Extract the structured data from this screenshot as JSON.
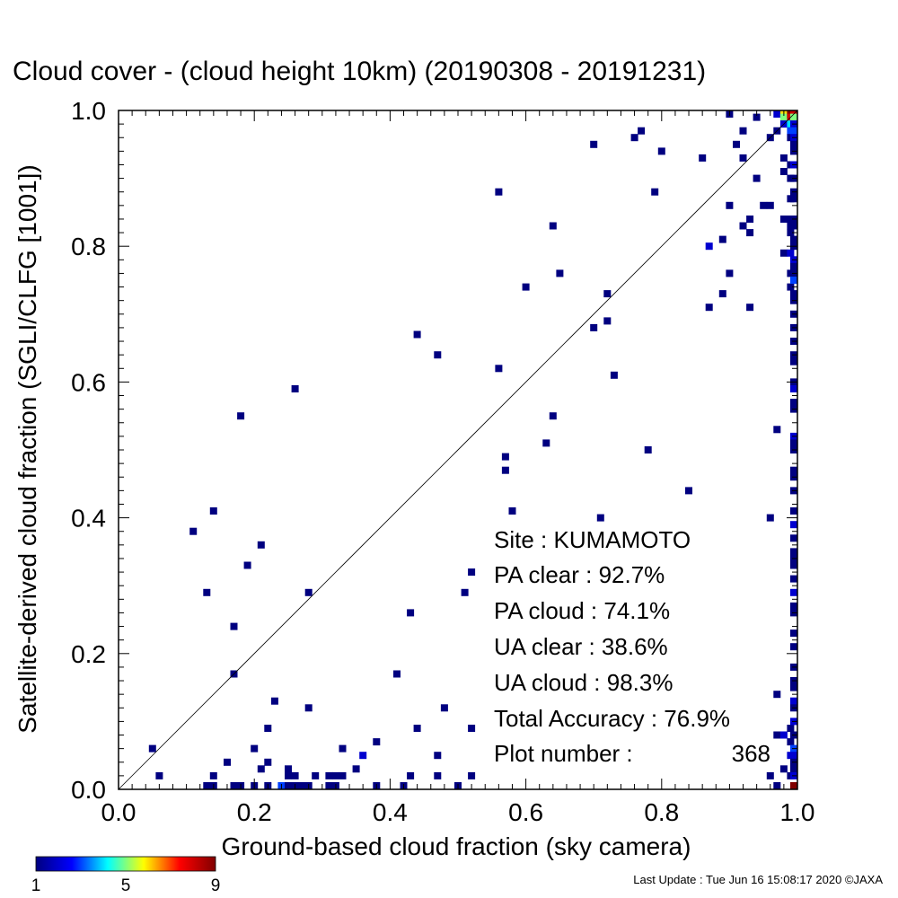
{
  "chart_data": {
    "type": "heatmap",
    "title": "Cloud cover - (cloud height 10km)  (20190308 - 20191231)",
    "xlabel": "Ground-based cloud fraction (sky camera)",
    "ylabel": "Satellite-derived cloud fraction (SGLI/CLFG [1001])",
    "xlim": [
      0.0,
      1.0
    ],
    "ylim": [
      0.0,
      1.0
    ],
    "xticks": [
      "0.0",
      "0.2",
      "0.4",
      "0.6",
      "0.8",
      "1.0"
    ],
    "yticks": [
      "0.0",
      "0.2",
      "0.4",
      "0.6",
      "0.8",
      "1.0"
    ],
    "diagonal_line": true,
    "grid": false,
    "colorbar": {
      "min": 1,
      "max": 9,
      "ticks": [
        "1",
        "5",
        "9"
      ],
      "colors": [
        "#000080",
        "#0000ff",
        "#00ffff",
        "#ffff00",
        "#ff0000",
        "#800000"
      ]
    },
    "points": [
      {
        "x": 0.05,
        "y": 0.06,
        "count": 1
      },
      {
        "x": 0.06,
        "y": 0.02,
        "count": 1
      },
      {
        "x": 0.11,
        "y": 0.38,
        "count": 1
      },
      {
        "x": 0.13,
        "y": 0.29,
        "count": 1
      },
      {
        "x": 0.13,
        "y": 0.0,
        "count": 1
      },
      {
        "x": 0.14,
        "y": 0.41,
        "count": 1
      },
      {
        "x": 0.14,
        "y": 0.02,
        "count": 1
      },
      {
        "x": 0.14,
        "y": 0.0,
        "count": 1
      },
      {
        "x": 0.16,
        "y": 0.04,
        "count": 1
      },
      {
        "x": 0.17,
        "y": 0.24,
        "count": 1
      },
      {
        "x": 0.17,
        "y": 0.17,
        "count": 1
      },
      {
        "x": 0.17,
        "y": 0.0,
        "count": 1
      },
      {
        "x": 0.18,
        "y": 0.55,
        "count": 1
      },
      {
        "x": 0.18,
        "y": 0.0,
        "count": 1
      },
      {
        "x": 0.19,
        "y": 0.33,
        "count": 1
      },
      {
        "x": 0.2,
        "y": 0.06,
        "count": 1
      },
      {
        "x": 0.2,
        "y": 0.0,
        "count": 1
      },
      {
        "x": 0.21,
        "y": 0.36,
        "count": 1
      },
      {
        "x": 0.21,
        "y": 0.03,
        "count": 1
      },
      {
        "x": 0.22,
        "y": 0.09,
        "count": 1
      },
      {
        "x": 0.22,
        "y": 0.04,
        "count": 1
      },
      {
        "x": 0.22,
        "y": 0.0,
        "count": 1
      },
      {
        "x": 0.23,
        "y": 0.13,
        "count": 1
      },
      {
        "x": 0.24,
        "y": 0.0,
        "count": 3
      },
      {
        "x": 0.25,
        "y": 0.03,
        "count": 1
      },
      {
        "x": 0.25,
        "y": 0.02,
        "count": 1
      },
      {
        "x": 0.25,
        "y": 0.0,
        "count": 1
      },
      {
        "x": 0.26,
        "y": 0.59,
        "count": 1
      },
      {
        "x": 0.26,
        "y": 0.02,
        "count": 1
      },
      {
        "x": 0.26,
        "y": 0.0,
        "count": 1
      },
      {
        "x": 0.27,
        "y": 0.0,
        "count": 1
      },
      {
        "x": 0.28,
        "y": 0.29,
        "count": 1
      },
      {
        "x": 0.28,
        "y": 0.12,
        "count": 1
      },
      {
        "x": 0.28,
        "y": 0.0,
        "count": 1
      },
      {
        "x": 0.29,
        "y": 0.02,
        "count": 1
      },
      {
        "x": 0.31,
        "y": 0.02,
        "count": 1
      },
      {
        "x": 0.31,
        "y": 0.0,
        "count": 1
      },
      {
        "x": 0.32,
        "y": 0.02,
        "count": 1
      },
      {
        "x": 0.32,
        "y": 0.0,
        "count": 1
      },
      {
        "x": 0.33,
        "y": 0.06,
        "count": 1
      },
      {
        "x": 0.33,
        "y": 0.02,
        "count": 1
      },
      {
        "x": 0.35,
        "y": 0.03,
        "count": 1
      },
      {
        "x": 0.36,
        "y": 0.05,
        "count": 2
      },
      {
        "x": 0.38,
        "y": 0.07,
        "count": 1
      },
      {
        "x": 0.38,
        "y": 0.0,
        "count": 1
      },
      {
        "x": 0.41,
        "y": 0.17,
        "count": 1
      },
      {
        "x": 0.42,
        "y": 0.0,
        "count": 1
      },
      {
        "x": 0.43,
        "y": 0.26,
        "count": 1
      },
      {
        "x": 0.43,
        "y": 0.02,
        "count": 1
      },
      {
        "x": 0.44,
        "y": 0.67,
        "count": 1
      },
      {
        "x": 0.44,
        "y": 0.09,
        "count": 1
      },
      {
        "x": 0.47,
        "y": 0.64,
        "count": 1
      },
      {
        "x": 0.47,
        "y": 0.05,
        "count": 1
      },
      {
        "x": 0.47,
        "y": 0.02,
        "count": 1
      },
      {
        "x": 0.48,
        "y": 0.12,
        "count": 1
      },
      {
        "x": 0.5,
        "y": 0.0,
        "count": 1
      },
      {
        "x": 0.51,
        "y": 0.29,
        "count": 1
      },
      {
        "x": 0.52,
        "y": 0.32,
        "count": 1
      },
      {
        "x": 0.52,
        "y": 0.09,
        "count": 1
      },
      {
        "x": 0.52,
        "y": 0.02,
        "count": 1
      },
      {
        "x": 0.56,
        "y": 0.88,
        "count": 1
      },
      {
        "x": 0.56,
        "y": 0.62,
        "count": 1
      },
      {
        "x": 0.57,
        "y": 0.49,
        "count": 1
      },
      {
        "x": 0.57,
        "y": 0.47,
        "count": 1
      },
      {
        "x": 0.58,
        "y": 0.41,
        "count": 1
      },
      {
        "x": 0.6,
        "y": 0.74,
        "count": 1
      },
      {
        "x": 0.63,
        "y": 0.51,
        "count": 1
      },
      {
        "x": 0.64,
        "y": 0.83,
        "count": 1
      },
      {
        "x": 0.64,
        "y": 0.55,
        "count": 1
      },
      {
        "x": 0.65,
        "y": 0.76,
        "count": 1
      },
      {
        "x": 0.7,
        "y": 0.95,
        "count": 1
      },
      {
        "x": 0.7,
        "y": 0.68,
        "count": 1
      },
      {
        "x": 0.71,
        "y": 0.4,
        "count": 1
      },
      {
        "x": 0.72,
        "y": 0.73,
        "count": 1
      },
      {
        "x": 0.72,
        "y": 0.69,
        "count": 1
      },
      {
        "x": 0.73,
        "y": 0.61,
        "count": 1
      },
      {
        "x": 0.76,
        "y": 0.96,
        "count": 1
      },
      {
        "x": 0.77,
        "y": 0.97,
        "count": 1
      },
      {
        "x": 0.78,
        "y": 0.5,
        "count": 1
      },
      {
        "x": 0.79,
        "y": 0.88,
        "count": 1
      },
      {
        "x": 0.8,
        "y": 0.94,
        "count": 1
      },
      {
        "x": 0.84,
        "y": 0.44,
        "count": 1
      },
      {
        "x": 0.86,
        "y": 0.93,
        "count": 1
      },
      {
        "x": 0.87,
        "y": 0.8,
        "count": 2
      },
      {
        "x": 0.87,
        "y": 0.71,
        "count": 1
      },
      {
        "x": 0.89,
        "y": 0.81,
        "count": 1
      },
      {
        "x": 0.89,
        "y": 0.73,
        "count": 1
      },
      {
        "x": 0.9,
        "y": 1.0,
        "count": 1
      },
      {
        "x": 0.9,
        "y": 0.86,
        "count": 1
      },
      {
        "x": 0.9,
        "y": 0.76,
        "count": 1
      },
      {
        "x": 0.91,
        "y": 0.95,
        "count": 1
      },
      {
        "x": 0.92,
        "y": 0.97,
        "count": 1
      },
      {
        "x": 0.92,
        "y": 0.93,
        "count": 1
      },
      {
        "x": 0.92,
        "y": 0.83,
        "count": 1
      },
      {
        "x": 0.93,
        "y": 0.84,
        "count": 1
      },
      {
        "x": 0.93,
        "y": 0.82,
        "count": 1
      },
      {
        "x": 0.93,
        "y": 0.71,
        "count": 1
      },
      {
        "x": 0.94,
        "y": 0.99,
        "count": 1
      },
      {
        "x": 0.94,
        "y": 0.9,
        "count": 1
      },
      {
        "x": 0.95,
        "y": 0.86,
        "count": 1
      },
      {
        "x": 0.96,
        "y": 0.96,
        "count": 1
      },
      {
        "x": 0.96,
        "y": 0.86,
        "count": 1
      },
      {
        "x": 0.96,
        "y": 0.4,
        "count": 1
      },
      {
        "x": 0.96,
        "y": 0.02,
        "count": 1
      },
      {
        "x": 0.97,
        "y": 1.0,
        "count": 2
      },
      {
        "x": 0.97,
        "y": 0.97,
        "count": 1
      },
      {
        "x": 0.97,
        "y": 0.53,
        "count": 1
      },
      {
        "x": 0.97,
        "y": 0.14,
        "count": 1
      },
      {
        "x": 0.97,
        "y": 0.08,
        "count": 1
      },
      {
        "x": 0.97,
        "y": 0.0,
        "count": 1
      },
      {
        "x": 0.98,
        "y": 1.0,
        "count": 6
      },
      {
        "x": 0.98,
        "y": 0.99,
        "count": 5
      },
      {
        "x": 0.98,
        "y": 0.98,
        "count": 2
      },
      {
        "x": 0.98,
        "y": 0.93,
        "count": 1
      },
      {
        "x": 0.98,
        "y": 0.91,
        "count": 1
      },
      {
        "x": 0.98,
        "y": 0.84,
        "count": 1
      },
      {
        "x": 0.98,
        "y": 0.79,
        "count": 1
      },
      {
        "x": 0.98,
        "y": 0.08,
        "count": 2
      },
      {
        "x": 0.98,
        "y": 0.03,
        "count": 1
      },
      {
        "x": 0.99,
        "y": 1.0,
        "count": 9
      },
      {
        "x": 0.99,
        "y": 0.99,
        "count": 8
      },
      {
        "x": 0.99,
        "y": 0.98,
        "count": 4
      },
      {
        "x": 0.99,
        "y": 0.97,
        "count": 3
      },
      {
        "x": 0.99,
        "y": 0.96,
        "count": 1
      },
      {
        "x": 0.99,
        "y": 0.92,
        "count": 1
      },
      {
        "x": 0.99,
        "y": 0.9,
        "count": 1
      },
      {
        "x": 0.99,
        "y": 0.87,
        "count": 1
      },
      {
        "x": 0.99,
        "y": 0.84,
        "count": 1
      },
      {
        "x": 0.99,
        "y": 0.83,
        "count": 1
      },
      {
        "x": 0.99,
        "y": 0.82,
        "count": 1
      },
      {
        "x": 0.99,
        "y": 0.79,
        "count": 2
      },
      {
        "x": 0.99,
        "y": 0.76,
        "count": 1
      },
      {
        "x": 0.99,
        "y": 0.74,
        "count": 1
      },
      {
        "x": 0.99,
        "y": 0.09,
        "count": 1
      },
      {
        "x": 0.99,
        "y": 0.07,
        "count": 1
      },
      {
        "x": 0.99,
        "y": 0.05,
        "count": 2
      },
      {
        "x": 0.99,
        "y": 0.02,
        "count": 1
      },
      {
        "x": 1.0,
        "y": 1.0,
        "count": 8
      },
      {
        "x": 1.0,
        "y": 0.99,
        "count": 5
      },
      {
        "x": 1.0,
        "y": 0.98,
        "count": 2
      },
      {
        "x": 1.0,
        "y": 0.97,
        "count": 3
      },
      {
        "x": 1.0,
        "y": 0.96,
        "count": 2
      },
      {
        "x": 1.0,
        "y": 0.95,
        "count": 1
      },
      {
        "x": 1.0,
        "y": 0.94,
        "count": 1
      },
      {
        "x": 1.0,
        "y": 0.92,
        "count": 2
      },
      {
        "x": 1.0,
        "y": 0.9,
        "count": 1
      },
      {
        "x": 1.0,
        "y": 0.88,
        "count": 1
      },
      {
        "x": 1.0,
        "y": 0.87,
        "count": 1
      },
      {
        "x": 1.0,
        "y": 0.84,
        "count": 1
      },
      {
        "x": 1.0,
        "y": 0.83,
        "count": 1
      },
      {
        "x": 1.0,
        "y": 0.81,
        "count": 1
      },
      {
        "x": 1.0,
        "y": 0.8,
        "count": 1
      },
      {
        "x": 1.0,
        "y": 0.78,
        "count": 2
      },
      {
        "x": 1.0,
        "y": 0.77,
        "count": 1
      },
      {
        "x": 1.0,
        "y": 0.76,
        "count": 1
      },
      {
        "x": 1.0,
        "y": 0.75,
        "count": 3
      },
      {
        "x": 1.0,
        "y": 0.73,
        "count": 1
      },
      {
        "x": 1.0,
        "y": 0.72,
        "count": 1
      },
      {
        "x": 1.0,
        "y": 0.7,
        "count": 1
      },
      {
        "x": 1.0,
        "y": 0.68,
        "count": 1
      },
      {
        "x": 1.0,
        "y": 0.66,
        "count": 1
      },
      {
        "x": 1.0,
        "y": 0.64,
        "count": 1
      },
      {
        "x": 1.0,
        "y": 0.63,
        "count": 1
      },
      {
        "x": 1.0,
        "y": 0.6,
        "count": 1
      },
      {
        "x": 1.0,
        "y": 0.59,
        "count": 2
      },
      {
        "x": 1.0,
        "y": 0.57,
        "count": 1
      },
      {
        "x": 1.0,
        "y": 0.56,
        "count": 1
      },
      {
        "x": 1.0,
        "y": 0.52,
        "count": 2
      },
      {
        "x": 1.0,
        "y": 0.51,
        "count": 1
      },
      {
        "x": 1.0,
        "y": 0.5,
        "count": 1
      },
      {
        "x": 1.0,
        "y": 0.47,
        "count": 1
      },
      {
        "x": 1.0,
        "y": 0.46,
        "count": 1
      },
      {
        "x": 1.0,
        "y": 0.44,
        "count": 1
      },
      {
        "x": 1.0,
        "y": 0.41,
        "count": 1
      },
      {
        "x": 1.0,
        "y": 0.39,
        "count": 2
      },
      {
        "x": 1.0,
        "y": 0.37,
        "count": 1
      },
      {
        "x": 1.0,
        "y": 0.35,
        "count": 1
      },
      {
        "x": 1.0,
        "y": 0.34,
        "count": 1
      },
      {
        "x": 1.0,
        "y": 0.33,
        "count": 1
      },
      {
        "x": 1.0,
        "y": 0.31,
        "count": 1
      },
      {
        "x": 1.0,
        "y": 0.29,
        "count": 2
      },
      {
        "x": 1.0,
        "y": 0.27,
        "count": 1
      },
      {
        "x": 1.0,
        "y": 0.26,
        "count": 1
      },
      {
        "x": 1.0,
        "y": 0.23,
        "count": 1
      },
      {
        "x": 1.0,
        "y": 0.21,
        "count": 1
      },
      {
        "x": 1.0,
        "y": 0.18,
        "count": 1
      },
      {
        "x": 1.0,
        "y": 0.16,
        "count": 1
      },
      {
        "x": 1.0,
        "y": 0.15,
        "count": 1
      },
      {
        "x": 1.0,
        "y": 0.13,
        "count": 2
      },
      {
        "x": 1.0,
        "y": 0.12,
        "count": 1
      },
      {
        "x": 1.0,
        "y": 0.1,
        "count": 2
      },
      {
        "x": 1.0,
        "y": 0.08,
        "count": 1
      },
      {
        "x": 1.0,
        "y": 0.06,
        "count": 3
      },
      {
        "x": 1.0,
        "y": 0.05,
        "count": 2
      },
      {
        "x": 1.0,
        "y": 0.04,
        "count": 1
      },
      {
        "x": 1.0,
        "y": 0.03,
        "count": 1
      },
      {
        "x": 1.0,
        "y": 0.02,
        "count": 2
      },
      {
        "x": 1.0,
        "y": 0.0,
        "count": 9
      }
    ]
  },
  "stats": {
    "site": "Site : KUMAMOTO",
    "pa_clear": "PA clear :  92.7%",
    "pa_cloud": "PA cloud :  74.1%",
    "ua_clear": "UA clear :  38.6%",
    "ua_cloud": "UA cloud :  98.3%",
    "total_accuracy": "Total Accuracy :  76.9%",
    "plot_number_label": "Plot number :",
    "plot_number_value": "368"
  },
  "footer": {
    "last_update": "Last Update : Tue Jun 16 15:08:17 2020  ©JAXA"
  }
}
